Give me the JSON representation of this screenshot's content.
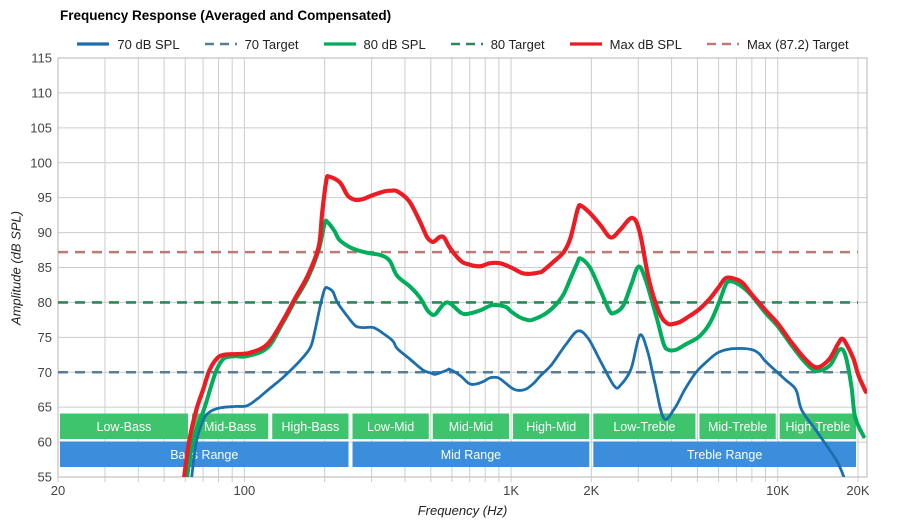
{
  "header": {
    "title": "Frequency Response (Averaged and Compensated)"
  },
  "axes": {
    "x_label": "Frequency (Hz)",
    "y_label": "Amplitude (dB SPL)"
  },
  "legend": {
    "items": [
      {
        "label": "70 dB SPL",
        "color": "#1c6fad",
        "dashed": false
      },
      {
        "label": "70 Target",
        "color": "#567d99",
        "dashed": true
      },
      {
        "label": "80 dB SPL",
        "color": "#00ad5a",
        "dashed": false
      },
      {
        "label": "80 Target",
        "color": "#2f8659",
        "dashed": true
      },
      {
        "label": "Max dB SPL",
        "color": "#ec1c24",
        "dashed": false
      },
      {
        "label": "Max (87.2) Target",
        "color": "#bd7b76",
        "dashed": true
      }
    ]
  },
  "chart_data": {
    "type": "line",
    "x_scale": "log",
    "xlim": [
      20,
      21600
    ],
    "ylim": [
      55,
      115
    ],
    "grid": true,
    "x_axis_ticks": [
      {
        "label": "20",
        "f": 20
      },
      {
        "label": "100",
        "f": 100
      },
      {
        "label": "1K",
        "f": 1000
      },
      {
        "label": "2K",
        "f": 2000
      },
      {
        "label": "10K",
        "f": 10000
      },
      {
        "label": "20K",
        "f": 20000
      }
    ],
    "x_gridlines": [
      30,
      40,
      50,
      60,
      70,
      80,
      90,
      100,
      200,
      300,
      400,
      500,
      600,
      700,
      800,
      900,
      1000,
      2000,
      3000,
      4000,
      5000,
      6000,
      7000,
      8000,
      9000,
      10000,
      20000
    ],
    "y_ticks": [
      55,
      60,
      65,
      70,
      75,
      80,
      85,
      90,
      95,
      100,
      105,
      110,
      115
    ],
    "colors": {
      "grid": "#cccccc",
      "border": "#c2c2c2",
      "tick_text": "#444444",
      "band_sub": "#3dc46d",
      "band_main": "#3a8edb"
    },
    "targets": [
      {
        "name": "70 Target",
        "value": 70,
        "color": "#567d99"
      },
      {
        "name": "80 Target",
        "value": 80,
        "color": "#2f8659"
      },
      {
        "name": "Max (87.2) Target",
        "value": 87.2,
        "color": "#bd7b76"
      }
    ],
    "series": [
      {
        "name": "70 dB SPL",
        "color": "#1c6fad",
        "width": 2.8,
        "points": [
          [
            63,
            54
          ],
          [
            66,
            60
          ],
          [
            70,
            63.1
          ],
          [
            74,
            64.3
          ],
          [
            81,
            64.9
          ],
          [
            92,
            65.1
          ],
          [
            102,
            65.2
          ],
          [
            112,
            66.2
          ],
          [
            122,
            67.4
          ],
          [
            140,
            69.3
          ],
          [
            162,
            71.7
          ],
          [
            177,
            73.6
          ],
          [
            184,
            76
          ],
          [
            192,
            79.3
          ],
          [
            200,
            81.9
          ],
          [
            207,
            82
          ],
          [
            215,
            81.5
          ],
          [
            224,
            79.9
          ],
          [
            247,
            77.7
          ],
          [
            262,
            76.6
          ],
          [
            280,
            76.4
          ],
          [
            305,
            76.4
          ],
          [
            330,
            75.6
          ],
          [
            360,
            74.5
          ],
          [
            374,
            73.4
          ],
          [
            417,
            71.9
          ],
          [
            468,
            70.3
          ],
          [
            500,
            69.9
          ],
          [
            521,
            69.7
          ],
          [
            575,
            70.3
          ],
          [
            590,
            70.4
          ],
          [
            645,
            69.5
          ],
          [
            695,
            68.4
          ],
          [
            735,
            68.3
          ],
          [
            790,
            68.7
          ],
          [
            834,
            69.2
          ],
          [
            895,
            69.2
          ],
          [
            950,
            68.5
          ],
          [
            1010,
            67.7
          ],
          [
            1065,
            67.4
          ],
          [
            1140,
            67.6
          ],
          [
            1215,
            68.4
          ],
          [
            1290,
            69.5
          ],
          [
            1420,
            71.1
          ],
          [
            1600,
            73.9
          ],
          [
            1780,
            75.9
          ],
          [
            1950,
            74.8
          ],
          [
            2170,
            71.5
          ],
          [
            2440,
            68
          ],
          [
            2580,
            68.2
          ],
          [
            2820,
            70.5
          ],
          [
            3040,
            75.3
          ],
          [
            3250,
            73
          ],
          [
            3460,
            68.5
          ],
          [
            3740,
            63.4
          ],
          [
            4100,
            64.8
          ],
          [
            4480,
            67.5
          ],
          [
            4940,
            70
          ],
          [
            5480,
            71.7
          ],
          [
            5960,
            72.8
          ],
          [
            6550,
            73.3
          ],
          [
            7360,
            73.4
          ],
          [
            8070,
            73.2
          ],
          [
            8550,
            72.6
          ],
          [
            8930,
            71.7
          ],
          [
            9770,
            70.3
          ],
          [
            10700,
            68.9
          ],
          [
            11700,
            67.5
          ],
          [
            12300,
            64.6
          ],
          [
            13900,
            61.7
          ],
          [
            16600,
            57.4
          ],
          [
            17900,
            54.5
          ]
        ]
      },
      {
        "name": "80 dB SPL",
        "color": "#00ad5a",
        "width": 4,
        "points": [
          [
            60.5,
            54
          ],
          [
            64,
            60
          ],
          [
            71,
            65
          ],
          [
            75,
            68
          ],
          [
            79,
            70.5
          ],
          [
            84,
            72
          ],
          [
            92,
            72.3
          ],
          [
            102,
            72.3
          ],
          [
            122,
            73.5
          ],
          [
            139,
            77
          ],
          [
            155,
            80.3
          ],
          [
            173,
            83.5
          ],
          [
            190,
            87.5
          ],
          [
            200,
            91.3
          ],
          [
            205,
            91.5
          ],
          [
            218,
            90.2
          ],
          [
            228,
            88.9
          ],
          [
            255,
            87.7
          ],
          [
            289,
            87.1
          ],
          [
            322,
            86.8
          ],
          [
            350,
            86
          ],
          [
            374,
            83.8
          ],
          [
            420,
            82.2
          ],
          [
            455,
            80.7
          ],
          [
            483,
            79
          ],
          [
            500,
            78.4
          ],
          [
            520,
            78.3
          ],
          [
            575,
            80
          ],
          [
            650,
            78.5
          ],
          [
            695,
            78.4
          ],
          [
            770,
            78.9
          ],
          [
            850,
            79.6
          ],
          [
            950,
            79.4
          ],
          [
            1000,
            78.7
          ],
          [
            1075,
            77.9
          ],
          [
            1150,
            77.5
          ],
          [
            1200,
            77.5
          ],
          [
            1335,
            78.3
          ],
          [
            1440,
            79.3
          ],
          [
            1565,
            81
          ],
          [
            1670,
            83.4
          ],
          [
            1770,
            85.6
          ],
          [
            1820,
            86.3
          ],
          [
            1975,
            85
          ],
          [
            2170,
            81.6
          ],
          [
            2340,
            78.8
          ],
          [
            2440,
            78.5
          ],
          [
            2630,
            79.5
          ],
          [
            2820,
            82.5
          ],
          [
            3000,
            85.1
          ],
          [
            3180,
            83.5
          ],
          [
            3510,
            77.9
          ],
          [
            3740,
            74
          ],
          [
            3900,
            73.2
          ],
          [
            4140,
            73.2
          ],
          [
            4520,
            74
          ],
          [
            5070,
            75.1
          ],
          [
            5560,
            77
          ],
          [
            6010,
            79.9
          ],
          [
            6340,
            82.3
          ],
          [
            6560,
            83
          ],
          [
            7130,
            82.6
          ],
          [
            7930,
            81.1
          ],
          [
            9000,
            78.5
          ],
          [
            10000,
            76.6
          ],
          [
            11100,
            74.2
          ],
          [
            12600,
            71.5
          ],
          [
            14000,
            70.2
          ],
          [
            15700,
            71
          ],
          [
            17000,
            73.2
          ],
          [
            17900,
            72.5
          ],
          [
            18900,
            68
          ],
          [
            19500,
            63.6
          ],
          [
            21000,
            60.8
          ]
        ]
      },
      {
        "name": "Max dB SPL",
        "color": "#ec1c24",
        "width": 4.2,
        "points": [
          [
            59,
            54
          ],
          [
            62,
            60
          ],
          [
            66,
            64.6
          ],
          [
            70,
            67.5
          ],
          [
            74,
            70.3
          ],
          [
            79,
            72
          ],
          [
            84,
            72.5
          ],
          [
            93,
            72.6
          ],
          [
            105,
            72.8
          ],
          [
            122,
            74
          ],
          [
            139,
            77.3
          ],
          [
            155,
            80.6
          ],
          [
            173,
            83.9
          ],
          [
            190,
            88
          ],
          [
            196,
            93
          ],
          [
            203,
            97.5
          ],
          [
            208,
            98
          ],
          [
            228,
            97.2
          ],
          [
            244,
            95.3
          ],
          [
            260,
            94.7
          ],
          [
            278,
            94.8
          ],
          [
            300,
            95.3
          ],
          [
            335,
            95.9
          ],
          [
            355,
            96
          ],
          [
            375,
            95.9
          ],
          [
            415,
            94.5
          ],
          [
            455,
            91.6
          ],
          [
            483,
            89.4
          ],
          [
            500,
            88.8
          ],
          [
            513,
            88.7
          ],
          [
            543,
            89.4
          ],
          [
            563,
            89.2
          ],
          [
            590,
            87.8
          ],
          [
            650,
            85.9
          ],
          [
            700,
            85.4
          ],
          [
            740,
            85.2
          ],
          [
            775,
            85.2
          ],
          [
            830,
            85.6
          ],
          [
            910,
            85.6
          ],
          [
            1000,
            85
          ],
          [
            1100,
            84.2
          ],
          [
            1180,
            84.1
          ],
          [
            1280,
            84.3
          ],
          [
            1315,
            84.5
          ],
          [
            1440,
            85.8
          ],
          [
            1575,
            87.2
          ],
          [
            1670,
            89.2
          ],
          [
            1780,
            93.4
          ],
          [
            1835,
            93.8
          ],
          [
            1975,
            92.8
          ],
          [
            2170,
            91
          ],
          [
            2320,
            89.5
          ],
          [
            2420,
            89.4
          ],
          [
            2580,
            90.5
          ],
          [
            2850,
            92.1
          ],
          [
            3040,
            90
          ],
          [
            3290,
            83.2
          ],
          [
            3600,
            78.5
          ],
          [
            3850,
            77
          ],
          [
            4030,
            76.9
          ],
          [
            4300,
            77.2
          ],
          [
            4520,
            77.7
          ],
          [
            5070,
            79
          ],
          [
            5560,
            80.5
          ],
          [
            6010,
            82.2
          ],
          [
            6400,
            83.5
          ],
          [
            7000,
            83.3
          ],
          [
            7430,
            82.7
          ],
          [
            7930,
            81.3
          ],
          [
            9000,
            78.9
          ],
          [
            10000,
            77
          ],
          [
            11100,
            74.6
          ],
          [
            12600,
            72
          ],
          [
            14000,
            70.7
          ],
          [
            15550,
            71.8
          ],
          [
            16800,
            74
          ],
          [
            17400,
            74.8
          ],
          [
            18000,
            74.2
          ],
          [
            19200,
            72
          ],
          [
            20100,
            69.5
          ],
          [
            21400,
            67.2
          ]
        ]
      }
    ],
    "bands": {
      "sub": [
        {
          "label": "Low-Bass",
          "range": [
            20,
            62.5
          ]
        },
        {
          "label": "Mid-Bass",
          "range": [
            62.5,
            125
          ]
        },
        {
          "label": "High-Bass",
          "range": [
            125,
            250
          ]
        },
        {
          "label": "Low-Mid",
          "range": [
            250,
            500
          ]
        },
        {
          "label": "Mid-Mid",
          "range": [
            500,
            1000
          ]
        },
        {
          "label": "High-Mid",
          "range": [
            1000,
            2000
          ]
        },
        {
          "label": "Low-Treble",
          "range": [
            2000,
            5000
          ]
        },
        {
          "label": "Mid-Treble",
          "range": [
            5000,
            10000
          ]
        },
        {
          "label": "High-Treble",
          "range": [
            10000,
            20000
          ]
        }
      ],
      "main": [
        {
          "label": "Bass Range",
          "range": [
            20,
            250
          ]
        },
        {
          "label": "Mid Range",
          "range": [
            250,
            2000
          ]
        },
        {
          "label": "Treble Range",
          "range": [
            2000,
            20000
          ]
        }
      ]
    }
  }
}
